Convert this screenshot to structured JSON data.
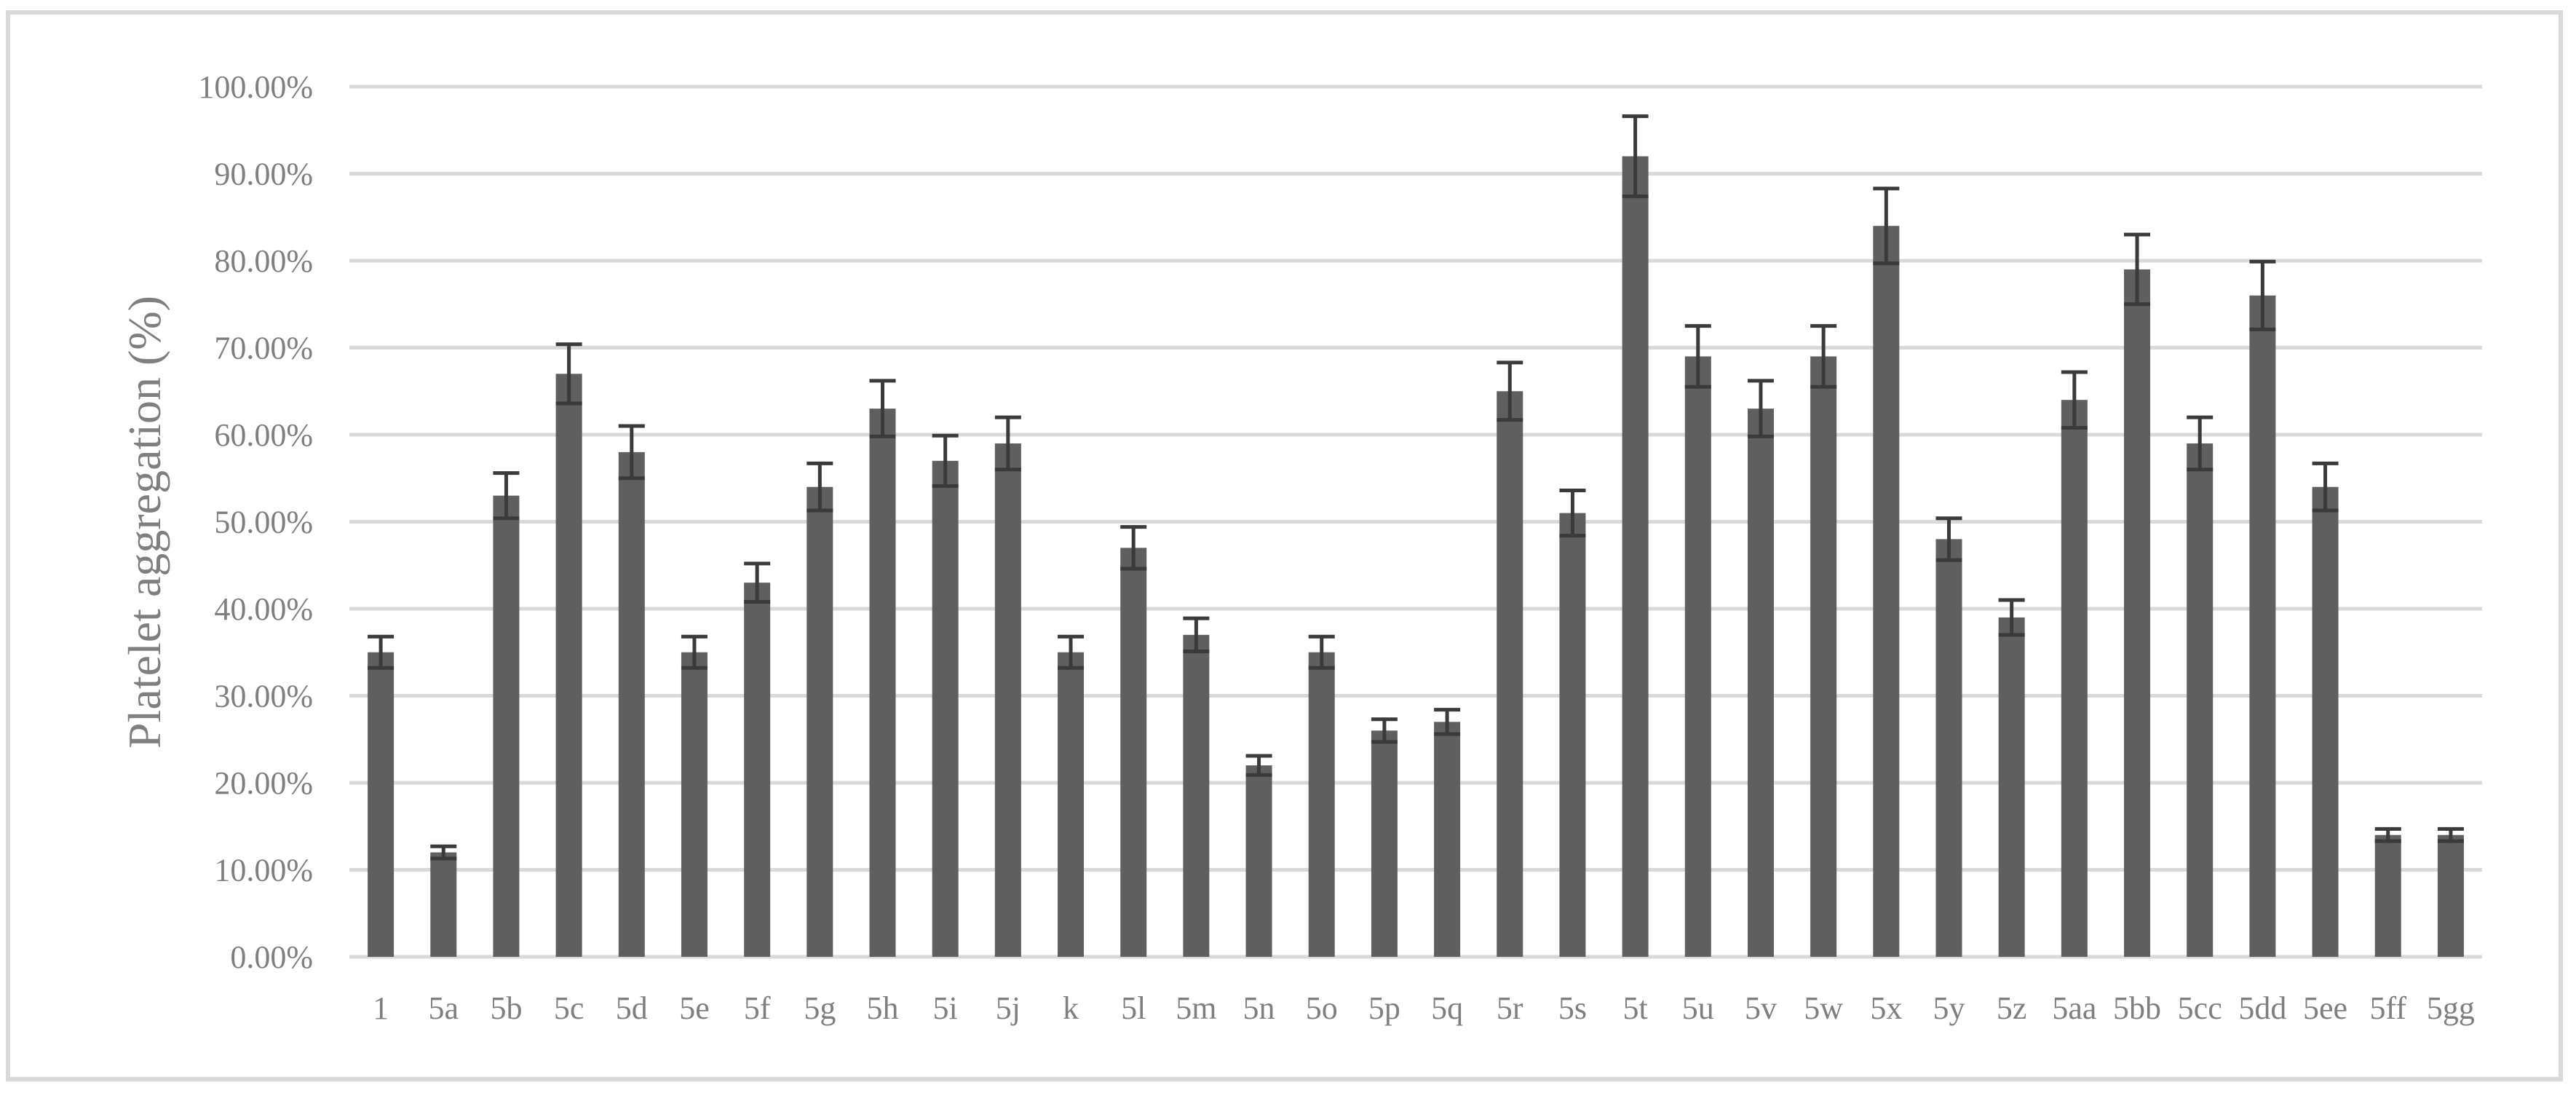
{
  "chart_data": {
    "type": "bar",
    "title": "",
    "xlabel": "",
    "ylabel": "Platelet aggregation (%)",
    "ylim": [
      0,
      100
    ],
    "yticks": [
      "0.00%",
      "10.00%",
      "20.00%",
      "30.00%",
      "40.00%",
      "50.00%",
      "60.00%",
      "70.00%",
      "80.00%",
      "90.00%",
      "100.00%"
    ],
    "grid": "horizontal",
    "legend": "none",
    "categories": [
      "1",
      "5a",
      "5b",
      "5c",
      "5d",
      "5e",
      "5f",
      "5g",
      "5h",
      "5i",
      "5j",
      "k",
      "5l",
      "5m",
      "5n",
      "5o",
      "5p",
      "5q",
      "5r",
      "5s",
      "5t",
      "5u",
      "5v",
      "5w",
      "5x",
      "5y",
      "5z",
      "5aa",
      "5bb",
      "5cc",
      "5dd",
      "5ee",
      "5ff",
      "5gg"
    ],
    "values": [
      35,
      12,
      53,
      67,
      58,
      35,
      43,
      54,
      63,
      57,
      59,
      35,
      47,
      37,
      22,
      35,
      26,
      27,
      65,
      51,
      92,
      69,
      63,
      69,
      84,
      48,
      39,
      64,
      79,
      59,
      76,
      54,
      14,
      14
    ],
    "errors": [
      1.8,
      0.7,
      2.6,
      3.4,
      3.0,
      1.8,
      2.2,
      2.7,
      3.2,
      2.9,
      3.0,
      1.8,
      2.4,
      1.9,
      1.1,
      1.8,
      1.3,
      1.4,
      3.3,
      2.6,
      4.6,
      3.5,
      3.2,
      3.5,
      4.3,
      2.4,
      2.0,
      3.2,
      4.0,
      3.0,
      3.9,
      2.7,
      0.7,
      0.7
    ],
    "colors": {
      "bar": "#5f5f5f",
      "grid": "#d9d9d9",
      "text": "#7f7f7f",
      "error": "#3a3a3a"
    }
  }
}
